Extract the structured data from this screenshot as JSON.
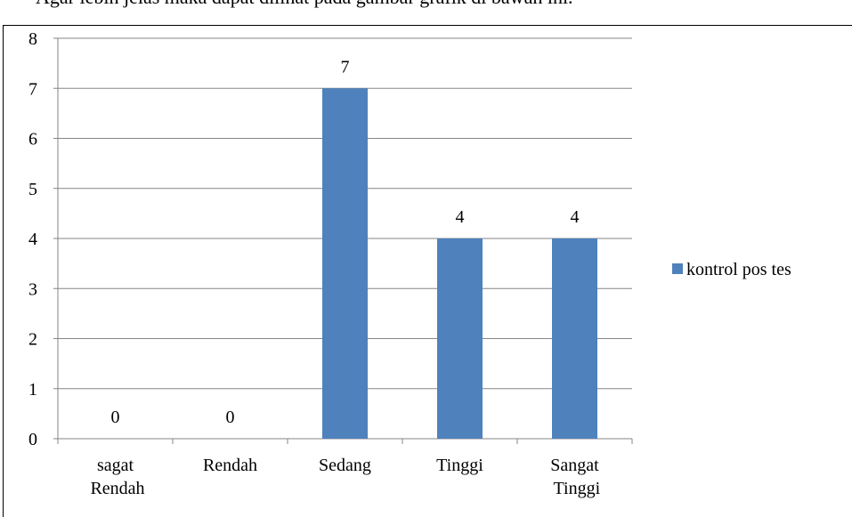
{
  "caption": "Agar lebih jelas maka dapat dilihat pada gambar grafik di bawah ini.",
  "chart_data": {
    "type": "bar",
    "categories": [
      "sagat Rendah",
      "Rendah",
      "Sedang",
      "Tinggi",
      "Sangat Tinggi"
    ],
    "series": [
      {
        "name": "kontrol pos tes",
        "color": "#4f81bd",
        "values": [
          0,
          0,
          7,
          4,
          4
        ]
      }
    ],
    "ylim": [
      0,
      8
    ],
    "yticks": [
      0,
      1,
      2,
      3,
      4,
      5,
      6,
      7,
      8
    ],
    "grid": true,
    "legend": "right"
  }
}
